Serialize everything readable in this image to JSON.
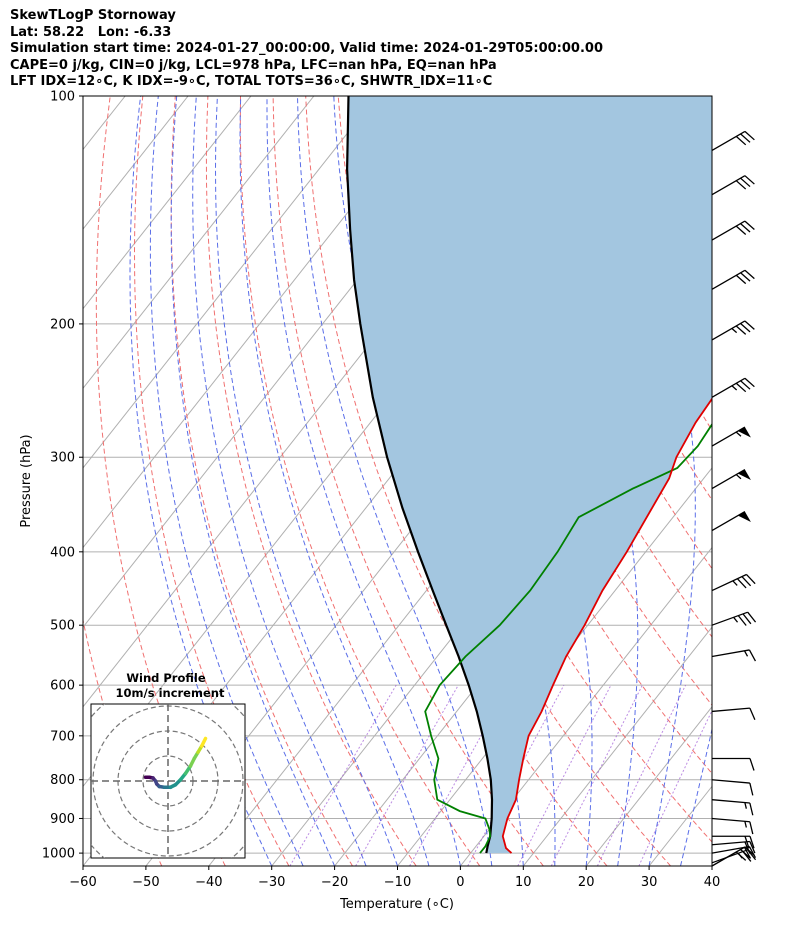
{
  "header": {
    "line1": "SkewTLogP Stornoway",
    "line2": "Lat: 58.22   Lon: -6.33",
    "line3": "Simulation start time: 2024-01-27_00:00:00, Valid time: 2024-01-29T05:00:00.00",
    "line4": "CAPE=0 j/kg, CIN=0 j/kg, LCL=978 hPa, LFC=nan hPa, EQ=nan hPa",
    "line5": "LFT IDX=12∘C, K IDX=-9∘C, TOTAL TOTS=36∘C, SHWTR_IDX=11∘C"
  },
  "chart_data": {
    "type": "skewt-logp",
    "xlabel": "Temperature (∘C)",
    "ylabel": "Pressure (hPa)",
    "xlim": [
      -60,
      40
    ],
    "ylim": [
      1040,
      100
    ],
    "x_ticks": [
      -60,
      -50,
      -40,
      -30,
      -20,
      -10,
      0,
      10,
      20,
      30,
      40
    ],
    "y_ticks": [
      1000,
      900,
      800,
      700,
      600,
      500,
      400,
      300,
      200,
      100
    ],
    "y_scale": "log",
    "grid": true,
    "temperature_color": "#e00000",
    "dewpoint_color": "#008000",
    "parcel_color": "#000000",
    "fill_color": "#a3c6e0",
    "temperature": [
      [
        1000,
        6.5
      ],
      [
        985,
        5.0
      ],
      [
        950,
        3.0
      ],
      [
        900,
        1.5
      ],
      [
        850,
        0.5
      ],
      [
        800,
        -1.5
      ],
      [
        750,
        -3.5
      ],
      [
        700,
        -5.5
      ],
      [
        650,
        -6.5
      ],
      [
        600,
        -8.0
      ],
      [
        550,
        -9.5
      ],
      [
        500,
        -10.5
      ],
      [
        450,
        -12.0
      ],
      [
        400,
        -13.0
      ],
      [
        350,
        -14.5
      ],
      [
        320,
        -15.5
      ],
      [
        300,
        -17.0
      ],
      [
        270,
        -18.3
      ],
      [
        250,
        -18.7
      ],
      [
        235,
        -17.0
      ],
      [
        220,
        -14.5
      ],
      [
        200,
        -11.0
      ],
      [
        180,
        -9.5
      ],
      [
        160,
        -7.5
      ],
      [
        140,
        -5.5
      ],
      [
        125,
        -3.5
      ],
      [
        115,
        -1.5
      ],
      [
        100,
        0.0
      ]
    ],
    "dewpoint": [
      [
        1000,
        1.5
      ],
      [
        980,
        1.5
      ],
      [
        950,
        1.0
      ],
      [
        930,
        0.0
      ],
      [
        900,
        -2.0
      ],
      [
        880,
        -7.0
      ],
      [
        850,
        -12.0
      ],
      [
        800,
        -15.0
      ],
      [
        750,
        -17.0
      ],
      [
        700,
        -21.0
      ],
      [
        650,
        -25.0
      ],
      [
        600,
        -26.0
      ],
      [
        550,
        -25.5
      ],
      [
        500,
        -24.0
      ],
      [
        450,
        -23.5
      ],
      [
        400,
        -24.0
      ],
      [
        360,
        -25.0
      ],
      [
        330,
        -20.0
      ],
      [
        310,
        -15.5
      ],
      [
        290,
        -15.0
      ],
      [
        270,
        -15.5
      ],
      [
        250,
        -17.0
      ],
      [
        230,
        -17.0
      ],
      [
        210,
        -17.5
      ],
      [
        190,
        -19.0
      ],
      [
        175,
        -21.0
      ],
      [
        150,
        -19.0
      ],
      [
        130,
        -18.0
      ],
      [
        100,
        -17.0
      ]
    ],
    "parcel": [
      [
        1000,
        2.5
      ],
      [
        978,
        1.8
      ],
      [
        950,
        1.0
      ],
      [
        900,
        -1.0
      ],
      [
        850,
        -3.3
      ],
      [
        800,
        -6.0
      ],
      [
        750,
        -9.2
      ],
      [
        700,
        -12.8
      ],
      [
        650,
        -16.8
      ],
      [
        600,
        -21.4
      ],
      [
        550,
        -26.6
      ],
      [
        500,
        -32.5
      ],
      [
        450,
        -39.0
      ],
      [
        400,
        -46.2
      ],
      [
        350,
        -54.2
      ],
      [
        300,
        -63.0
      ],
      [
        250,
        -72.8
      ],
      [
        200,
        -84.0
      ],
      [
        175,
        -90.5
      ],
      [
        150,
        -97.5
      ],
      [
        125,
        -105.5
      ],
      [
        100,
        -114.5
      ]
    ],
    "dry_adiabats_theta_c": [
      -50,
      -40,
      -30,
      -20,
      -10,
      0,
      10,
      20,
      30,
      40,
      50,
      60,
      70,
      80,
      90,
      100,
      110,
      120,
      130,
      140,
      150,
      160
    ],
    "moist_adiabats_start_c": [
      -30,
      -25,
      -20,
      -15,
      -10,
      -5,
      0,
      5,
      10,
      15,
      20,
      25,
      30,
      35
    ],
    "mixing_ratio_lines": [
      0.4,
      1,
      2,
      4,
      7,
      10,
      16,
      24
    ],
    "wind_barbs": [
      {
        "p": 1040,
        "speed_kt": 30,
        "dir_deg": 240
      },
      {
        "p": 1030,
        "speed_kt": 25,
        "dir_deg": 250
      },
      {
        "p": 1000,
        "speed_kt": 20,
        "dir_deg": 260
      },
      {
        "p": 975,
        "speed_kt": 20,
        "dir_deg": 265
      },
      {
        "p": 950,
        "speed_kt": 20,
        "dir_deg": 270
      },
      {
        "p": 900,
        "speed_kt": 15,
        "dir_deg": 275
      },
      {
        "p": 850,
        "speed_kt": 15,
        "dir_deg": 275
      },
      {
        "p": 800,
        "speed_kt": 10,
        "dir_deg": 275
      },
      {
        "p": 750,
        "speed_kt": 10,
        "dir_deg": 270
      },
      {
        "p": 650,
        "speed_kt": 10,
        "dir_deg": 265
      },
      {
        "p": 550,
        "speed_kt": 15,
        "dir_deg": 260
      },
      {
        "p": 500,
        "speed_kt": 35,
        "dir_deg": 250
      },
      {
        "p": 450,
        "speed_kt": 35,
        "dir_deg": 245
      },
      {
        "p": 375,
        "speed_kt": 50,
        "dir_deg": 240
      },
      {
        "p": 330,
        "speed_kt": 55,
        "dir_deg": 240
      },
      {
        "p": 290,
        "speed_kt": 55,
        "dir_deg": 240
      },
      {
        "p": 250,
        "speed_kt": 35,
        "dir_deg": 240
      },
      {
        "p": 210,
        "speed_kt": 35,
        "dir_deg": 240
      },
      {
        "p": 180,
        "speed_kt": 30,
        "dir_deg": 240
      },
      {
        "p": 155,
        "speed_kt": 30,
        "dir_deg": 240
      },
      {
        "p": 135,
        "speed_kt": 30,
        "dir_deg": 240
      },
      {
        "p": 118,
        "speed_kt": 30,
        "dir_deg": 240
      }
    ],
    "hodograph": {
      "title": "Wind Profile",
      "subtitle": "10m/s increment",
      "ring_step_ms": 10,
      "points": [
        [
          -9,
          1.5
        ],
        [
          -7.5,
          1.5
        ],
        [
          -6,
          1.2
        ],
        [
          -5,
          0
        ],
        [
          -4.5,
          -1.2
        ],
        [
          -3.5,
          -2.2
        ],
        [
          -1.5,
          -2.5
        ],
        [
          1,
          -2.5
        ],
        [
          3,
          -1.5
        ],
        [
          5,
          0.5
        ],
        [
          7,
          3
        ],
        [
          9,
          6
        ],
        [
          10.5,
          9
        ],
        [
          12,
          11.5
        ],
        [
          13.5,
          14
        ],
        [
          15,
          17
        ]
      ]
    }
  }
}
